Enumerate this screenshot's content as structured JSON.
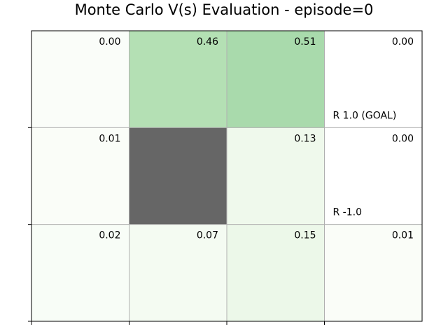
{
  "chart_data": {
    "type": "heatmap",
    "title": "Monte Carlo V(s) Evaluation - episode=0",
    "rows": 3,
    "cols": 4,
    "values": [
      [
        0.0,
        0.46,
        0.51,
        0.0
      ],
      [
        0.01,
        null,
        0.13,
        0.0
      ],
      [
        0.02,
        0.07,
        0.15,
        0.01
      ]
    ],
    "value_labels": [
      [
        "0.00",
        "0.46",
        "0.51",
        "0.00"
      ],
      [
        "0.01",
        "",
        "0.13",
        "0.00"
      ],
      [
        "0.02",
        "0.07",
        "0.15",
        "0.01"
      ]
    ],
    "wall_cells": [
      [
        1,
        1
      ]
    ],
    "reward_cells": [
      {
        "row": 0,
        "col": 3,
        "label": "R 1.0 (GOAL)"
      },
      {
        "row": 1,
        "col": 3,
        "label": "R -1.0"
      }
    ],
    "colormap": "Greens",
    "vmin": 0,
    "vmax": 1,
    "wall_color": "#666666",
    "grid": true
  }
}
